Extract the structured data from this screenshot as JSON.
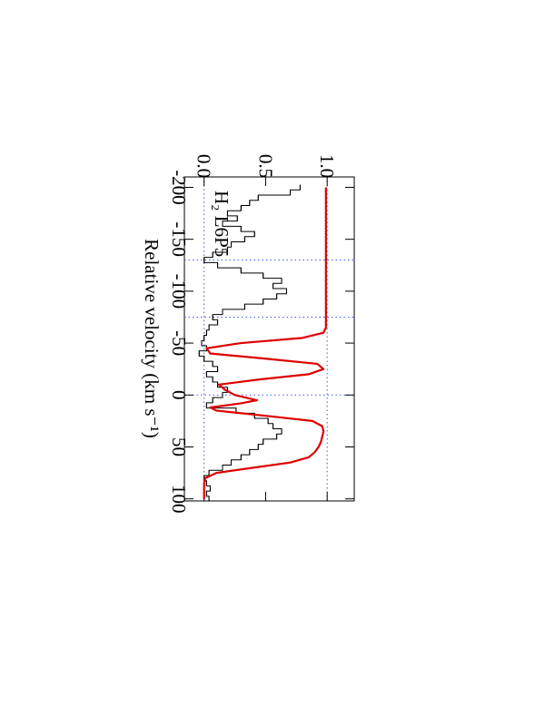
{
  "chart_data": {
    "type": "step",
    "xlabel": "Relative velocity (km s⁻¹)",
    "annotation": "H₂ L6P5",
    "xlim": [
      -210,
      102
    ],
    "ylim": [
      -0.16,
      1.22
    ],
    "xticks": [
      -200,
      -150,
      -100,
      -50,
      0,
      50,
      100
    ],
    "yticks": [
      {
        "value": 0,
        "label": "0.0"
      },
      0.5,
      {
        "value": 1,
        "label": "1.0"
      }
    ],
    "vlines": [
      -130,
      -75,
      0
    ],
    "hlines": [
      0,
      1
    ],
    "guide_color": "#4455ee",
    "series": [
      {
        "kind": "histogram",
        "color": "#000000",
        "x": [
          -200,
          -195,
          -190,
          -185,
          -180,
          -175,
          -170,
          -165,
          -160,
          -155,
          -150,
          -145,
          -140,
          -135,
          -130,
          -125,
          -120,
          -115,
          -110,
          -105,
          -100,
          -95,
          -90,
          -85,
          -80,
          -75,
          -70,
          -65,
          -60,
          -55,
          -50,
          -45,
          -40,
          -35,
          -30,
          -25,
          -20,
          -15,
          -10,
          -5,
          0,
          5,
          10,
          15,
          20,
          25,
          30,
          35,
          40,
          45,
          50,
          55,
          60,
          65,
          70,
          75,
          80,
          85,
          90,
          95,
          100
        ],
        "values": [
          0.78,
          0.7,
          0.44,
          0.37,
          0.3,
          0.19,
          0.27,
          0.15,
          0.3,
          0.41,
          0.33,
          0.22,
          0.19,
          0.07,
          0.0,
          0.11,
          0.3,
          0.48,
          0.63,
          0.56,
          0.67,
          0.59,
          0.48,
          0.33,
          0.15,
          0.07,
          0.11,
          0.04,
          0.02,
          0.0,
          -0.02,
          0.02,
          -0.04,
          0.0,
          0.07,
          0.11,
          0.02,
          0.07,
          0.11,
          0.19,
          0.15,
          0.07,
          0.02,
          0.26,
          0.41,
          0.52,
          0.56,
          0.63,
          0.59,
          0.48,
          0.44,
          0.37,
          0.3,
          0.22,
          0.15,
          0.04,
          0.0,
          0.02,
          0.05,
          0.02,
          0.04
        ]
      },
      {
        "kind": "line",
        "color": "#dd0000",
        "x": [
          -200,
          -150,
          -100,
          -65,
          -60,
          -55,
          -50,
          -45,
          -40,
          -35,
          -30,
          -25,
          -20,
          -15,
          -10,
          -5,
          0,
          5,
          8,
          12,
          15,
          20,
          25,
          30,
          35,
          40,
          45,
          50,
          55,
          60,
          65,
          70,
          75,
          80,
          85,
          100
        ],
        "values": [
          0.99,
          0.99,
          0.99,
          0.99,
          0.97,
          0.8,
          0.3,
          0.02,
          0.05,
          0.5,
          0.92,
          0.97,
          0.85,
          0.45,
          0.12,
          0.17,
          0.25,
          0.43,
          0.3,
          0.05,
          0.1,
          0.5,
          0.88,
          0.96,
          0.97,
          0.96,
          0.95,
          0.93,
          0.9,
          0.85,
          0.7,
          0.4,
          0.1,
          0.01,
          0.0,
          0.0
        ]
      }
    ]
  }
}
